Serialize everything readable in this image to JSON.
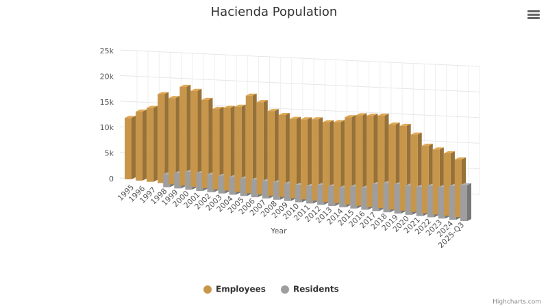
{
  "chart_data": {
    "type": "bar3d",
    "title": "Hacienda Population",
    "x_label": "Year",
    "credits": "Highcharts.com",
    "categories": [
      "1995",
      "1996",
      "1997",
      "1998",
      "1999",
      "2000",
      "2001",
      "2002",
      "2003",
      "2004",
      "2005",
      "2006",
      "2007",
      "2008",
      "2009",
      "2010",
      "2011",
      "2012",
      "2013",
      "2014",
      "2015",
      "2016",
      "2017",
      "2018",
      "2019",
      "2020",
      "2021",
      "2022",
      "2023",
      "2024",
      "2025-Q3"
    ],
    "series": [
      {
        "name": "Employees",
        "color": "#c8964a",
        "values": [
          12000,
          13500,
          14500,
          17500,
          17000,
          19500,
          19000,
          17500,
          16000,
          16500,
          17000,
          19500,
          18500,
          17000,
          16500,
          16000,
          16200,
          16500,
          16200,
          16500,
          17800,
          18500,
          18700,
          19000,
          17500,
          17500,
          16000,
          14000,
          13500,
          13000,
          12000
        ]
      },
      {
        "name": "Residents",
        "color": "#9e9e9e",
        "values": [
          null,
          null,
          null,
          2500,
          3000,
          3500,
          3500,
          3500,
          3500,
          3500,
          3500,
          3500,
          3500,
          3500,
          3500,
          3500,
          3500,
          4000,
          4000,
          4000,
          4500,
          4500,
          5500,
          6000,
          6000,
          6000,
          6000,
          6500,
          6500,
          7000,
          7500
        ]
      }
    ],
    "ylim": [
      0,
      25000
    ],
    "yticks": [
      {
        "value": 0,
        "label": "0"
      },
      {
        "value": 5000,
        "label": "5k"
      },
      {
        "value": 10000,
        "label": "10k"
      },
      {
        "value": 15000,
        "label": "15k"
      },
      {
        "value": 20000,
        "label": "20k"
      },
      {
        "value": 25000,
        "label": "25k"
      }
    ],
    "grid": true,
    "legend": "bottom"
  }
}
